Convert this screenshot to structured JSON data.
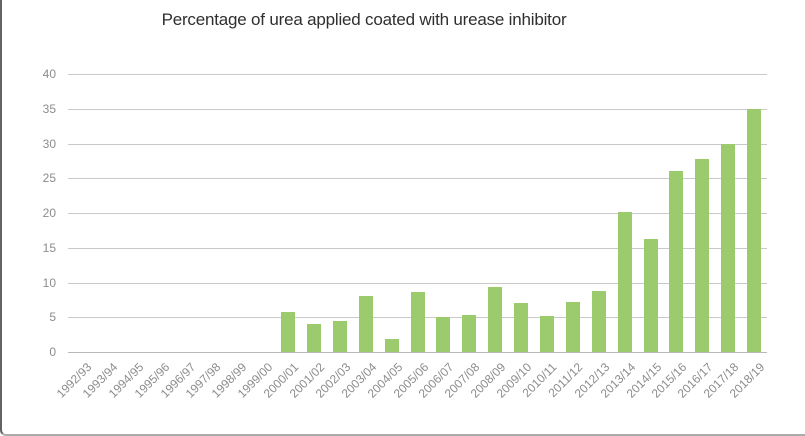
{
  "chart_data": {
    "type": "bar",
    "title": "Percentage of urea applied coated with urease inhibitor",
    "categories": [
      "1992/93",
      "1993/94",
      "1994/95",
      "1995/96",
      "1996/97",
      "1997/98",
      "1998/99",
      "1999/00",
      "2000/01",
      "2001/02",
      "2002/03",
      "2003/04",
      "2004/05",
      "2005/06",
      "2006/07",
      "2007/08",
      "2008/09",
      "2009/10",
      "2010/11",
      "2011/12",
      "2012/13",
      "2013/14",
      "2014/15",
      "2015/16",
      "2016/17",
      "2017/18",
      "2018/19"
    ],
    "values": [
      0,
      0,
      0,
      0,
      0,
      0,
      0,
      0,
      5.8,
      4,
      4.5,
      8.1,
      1.8,
      8.7,
      5,
      5.3,
      9.4,
      7,
      5.2,
      7.2,
      8.8,
      20.2,
      16.2,
      26,
      27.8,
      30,
      35
    ],
    "xlabel": "",
    "ylabel": "",
    "ylim": [
      0,
      40
    ],
    "y_ticks": [
      0,
      5,
      10,
      15,
      20,
      25,
      30,
      35,
      40
    ],
    "grid": true,
    "legend": false,
    "colors": {
      "bar": "#9ccb6e",
      "gridline": "#c9c9c9",
      "axis_line": "#b9b9b9",
      "tick_labels": "#8c8c8c",
      "title": "#2f2f2f"
    }
  }
}
